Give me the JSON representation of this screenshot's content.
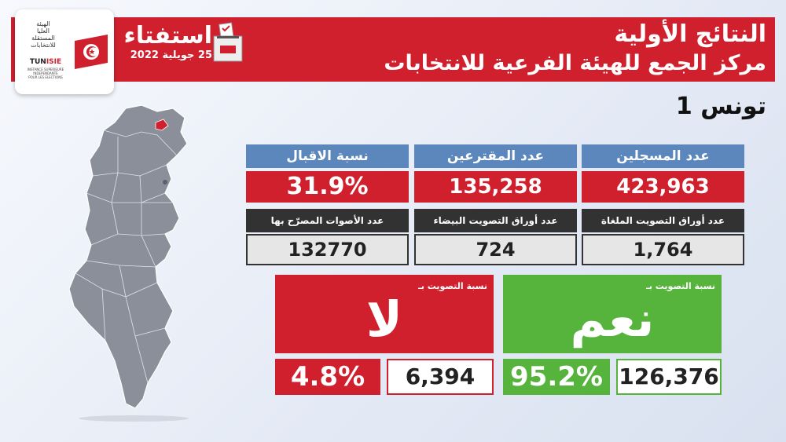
{
  "logo": {
    "arabic_lines": [
      "الهيئة",
      "العليا",
      "المستقلة",
      "للانتخابات"
    ],
    "acronym_a": "TUN",
    "acronym_b": "ISIE",
    "french_lines": [
      "INSTANCE SUPERIEURE",
      "INDEPENDANTE",
      "POUR LES ELECTIONS"
    ]
  },
  "campaign": {
    "title": "استفتاء",
    "date": "25 جويلية 2022"
  },
  "header": {
    "title": "النتائج الأولية",
    "subtitle": "مركز الجمع للهيئة الفرعية للانتخابات"
  },
  "region": "تونس 1",
  "stats": {
    "registered": {
      "label": "عدد المسجلين",
      "value": "423,963"
    },
    "voters": {
      "label": "عدد المقترعين",
      "value": "135,258"
    },
    "turnout": {
      "label": "نسبة الاقبال",
      "value": "31.9%"
    },
    "cancelled": {
      "label": "عدد أوراق التصويت الملغاة",
      "value": "1,764"
    },
    "blank": {
      "label": "عدد أوراق التصويت البيضاء",
      "value": "724"
    },
    "valid": {
      "label": "عدد الأصوات المصرّح بها",
      "value": "132770"
    }
  },
  "results": {
    "no": {
      "label": "نسبة التصويت بـ",
      "word": "لا",
      "percent": "4.8%",
      "count": "6,394",
      "color": "#d0202e"
    },
    "yes": {
      "label": "نسبة التصويت بـ",
      "word": "نعم",
      "percent": "95.2%",
      "count": "126,376",
      "color": "#56b33c"
    }
  },
  "colors": {
    "brand_red": "#d0202e",
    "label_blue": "#5b87bd",
    "label_dark": "#323232",
    "yes_green": "#56b33c"
  },
  "icons": {
    "flag": "tunisia-flag-icon",
    "ballot": "ballot-box-icon",
    "map": "tunisia-map"
  }
}
